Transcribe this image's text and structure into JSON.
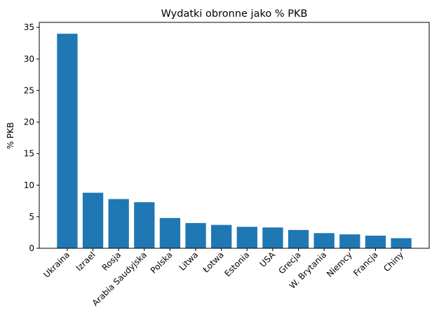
{
  "chart_data": {
    "type": "bar",
    "title": "Wydatki obronne jako % PKB",
    "y_label": "% PKB",
    "categories": [
      "Ukraina",
      "Izrael",
      "Rosja",
      "Arabia Saudyjska",
      "Polska",
      "Litwa",
      "Łotwa",
      "Estonia",
      "USA",
      "Grecja",
      "W. Brytania",
      "Niemcy",
      "Francja",
      "Chiny"
    ],
    "values": [
      34.0,
      8.8,
      7.8,
      7.3,
      4.8,
      4.0,
      3.7,
      3.4,
      3.3,
      2.9,
      2.4,
      2.2,
      2.0,
      1.6
    ],
    "color": "#1f77b4",
    "ylim": [
      0,
      35.8
    ],
    "yticks": [
      0,
      5,
      10,
      15,
      20,
      25,
      30,
      35
    ],
    "grid": false
  }
}
